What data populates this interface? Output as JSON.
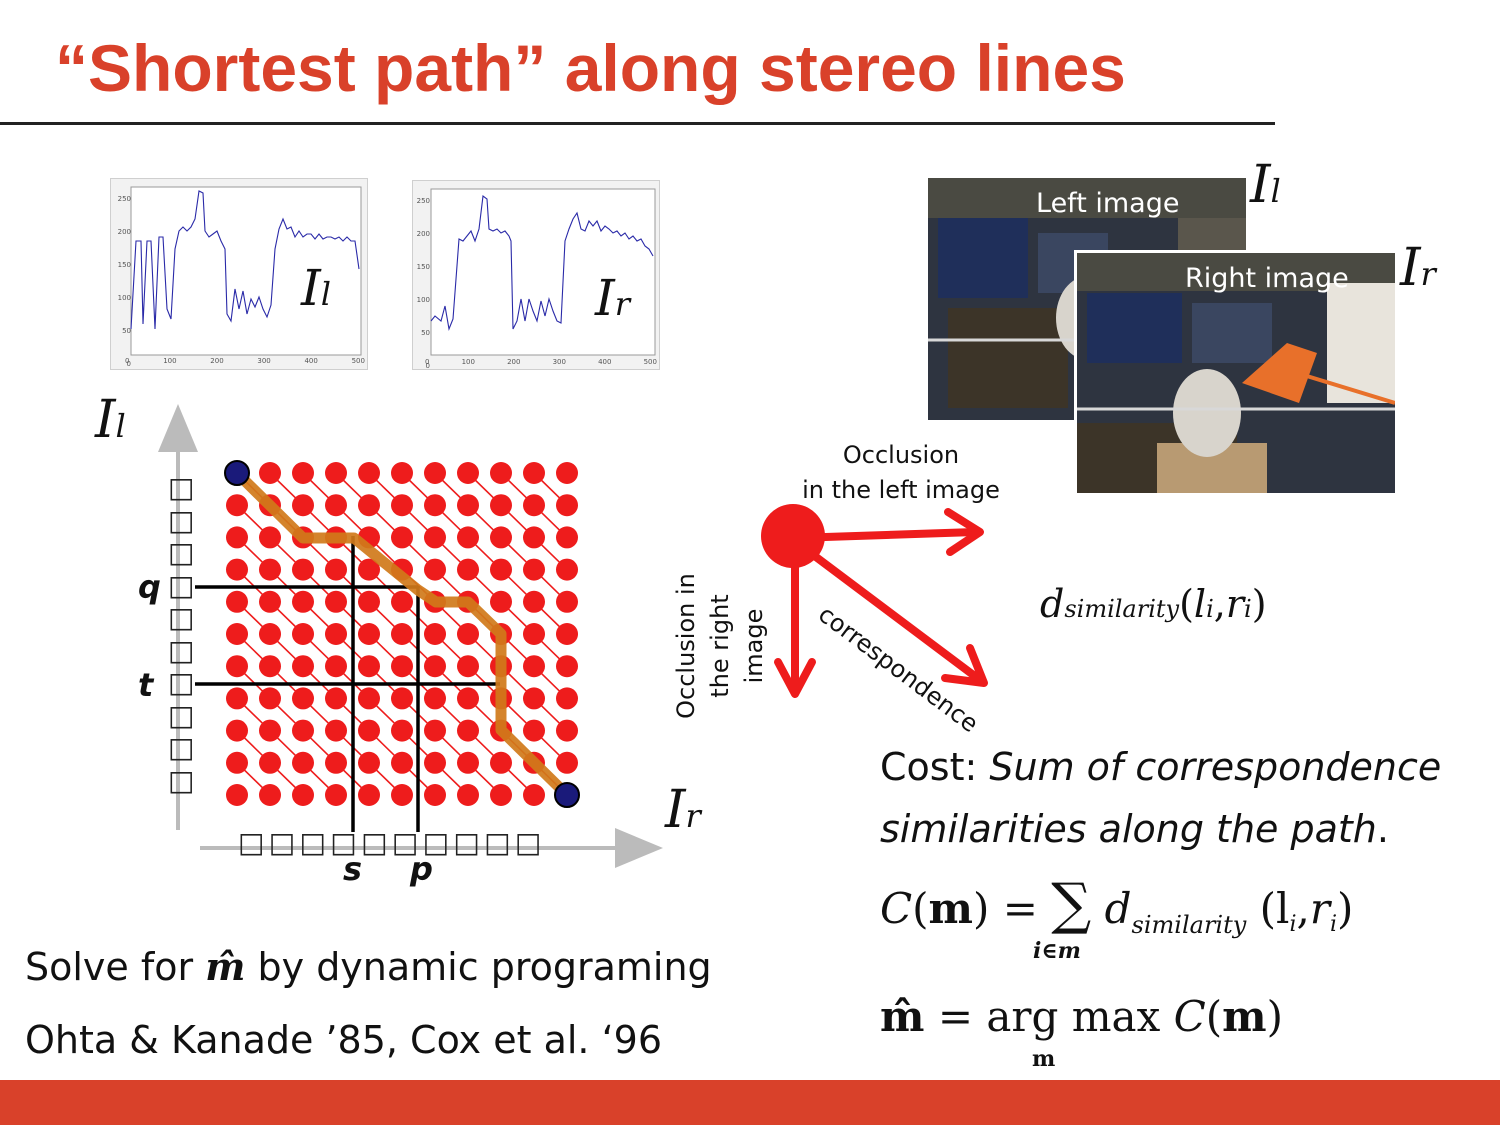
{
  "title": "“Shortest path” along stereo lines",
  "colors": {
    "accent": "#d9412a",
    "node": "#ee1c1c",
    "path": "#d07a1a",
    "endpoint": "#1a1a7a",
    "arrow": "#ee1c1c"
  },
  "plots": {
    "left": {
      "label": "I",
      "sub": "l",
      "y_ticks": [
        "250",
        "200",
        "150",
        "100",
        "50",
        "0"
      ],
      "x_ticks": [
        "0",
        "100",
        "200",
        "300",
        "400",
        "500"
      ]
    },
    "right": {
      "label": "I",
      "sub": "r",
      "y_ticks": [
        "250",
        "200",
        "150",
        "100",
        "50",
        "0"
      ],
      "x_ticks": [
        "0",
        "100",
        "200",
        "300",
        "400",
        "500"
      ]
    }
  },
  "grid": {
    "axis_y_label": "I",
    "axis_y_sub": "l",
    "axis_x_label": "I",
    "axis_x_sub": "r",
    "row_marks": [
      "q",
      "t"
    ],
    "col_marks": [
      "s",
      "p"
    ],
    "box_glyph": "□"
  },
  "photos": {
    "left_label": "Left image",
    "left_math": "I",
    "left_sub": "l",
    "right_label": "Right image",
    "right_math": "I",
    "right_sub": "r"
  },
  "arrows": {
    "occlusion_left": [
      "Occlusion",
      "in the left image"
    ],
    "occlusion_right": [
      "Occlusion in",
      "the right",
      "image"
    ],
    "correspondence": "correspondence"
  },
  "similarity": {
    "d": "d",
    "sub": "similarity",
    "args_open": "(",
    "l": "l",
    "i1": "i",
    "comma": ",",
    "r": "r",
    "i2": "i",
    "args_close": ")"
  },
  "cost": {
    "prefix": "Cost: ",
    "italic_line1": "Sum of correspondence",
    "italic_line2": "similarities along the path",
    "period": "."
  },
  "formula1": {
    "lhs": "C",
    "m": "m",
    "eq": "=",
    "sum": "∑",
    "sum_sub": "i∈m",
    "d": "d",
    "d_sub": "similarity",
    "l": "l",
    "i": "i",
    "r": "r"
  },
  "formula2": {
    "mhat": "m̂",
    "eq": "=",
    "argmax": "arg max",
    "argmax_sub": "m",
    "C": "C",
    "m": "m"
  },
  "solve": {
    "prefix": "Solve for ",
    "var": "m̂",
    "suffix": " by dynamic programing"
  },
  "citation": "Ohta & Kanade ’85, Cox et al. ‘96"
}
